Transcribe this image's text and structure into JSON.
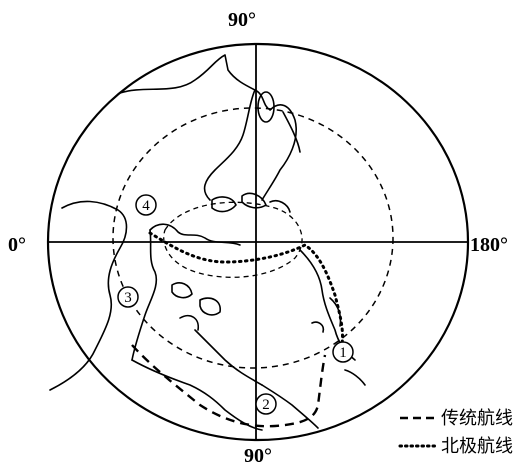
{
  "map": {
    "longitude_labels": {
      "top": "90°",
      "left": "0°",
      "right": "180°",
      "bottom": "90°"
    },
    "markers": [
      {
        "id": "m1",
        "label": "①"
      },
      {
        "id": "m2",
        "label": "②"
      },
      {
        "id": "m3",
        "label": "③"
      },
      {
        "id": "m4",
        "label": "④"
      }
    ],
    "legend": [
      {
        "line_style": "dashed",
        "label": "传统航线"
      },
      {
        "line_style": "dotted",
        "label": "北极航线"
      }
    ]
  }
}
